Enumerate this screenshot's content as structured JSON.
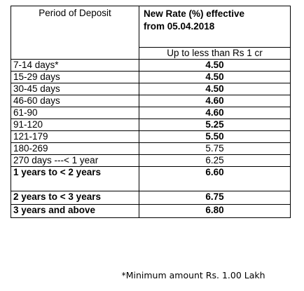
{
  "table": {
    "header": {
      "period_label": "Period of Deposit",
      "rate_label_line1": "New Rate (%) effective",
      "rate_label_line2": "from 05.04.2018",
      "subheader": "Up to less than Rs 1 cr"
    },
    "rows": [
      {
        "period": "7-14 days*",
        "rate": "4.50",
        "period_bold": false,
        "rate_bold": true
      },
      {
        "period": "15-29 days",
        "rate": "4.50",
        "period_bold": false,
        "rate_bold": true
      },
      {
        "period": "30-45 days",
        "rate": "4.50",
        "period_bold": false,
        "rate_bold": true
      },
      {
        "period": "46-60 days",
        "rate": "4.60",
        "period_bold": false,
        "rate_bold": true
      },
      {
        "period": "61-90",
        "rate": "4.60",
        "period_bold": false,
        "rate_bold": true
      },
      {
        "period": "91-120",
        "rate": "5.25",
        "period_bold": false,
        "rate_bold": true
      },
      {
        "period": "121-179",
        "rate": "5.50",
        "period_bold": false,
        "rate_bold": true
      },
      {
        "period": "180-269",
        "rate": "5.75",
        "period_bold": false,
        "rate_bold": false
      },
      {
        "period": "270 days ---< 1 year",
        "rate": "6.25",
        "period_bold": false,
        "rate_bold": false
      },
      {
        "period": "1 years to < 2 years",
        "rate": "6.60",
        "period_bold": true,
        "rate_bold": true
      },
      {
        "period": "2 years to < 3 years",
        "rate": "6.75",
        "period_bold": true,
        "rate_bold": true
      },
      {
        "period": "3 years and above",
        "rate": "6.80",
        "period_bold": true,
        "rate_bold": true
      }
    ]
  },
  "footnote": "*Minimum amount Rs. 1.00 Lakh"
}
